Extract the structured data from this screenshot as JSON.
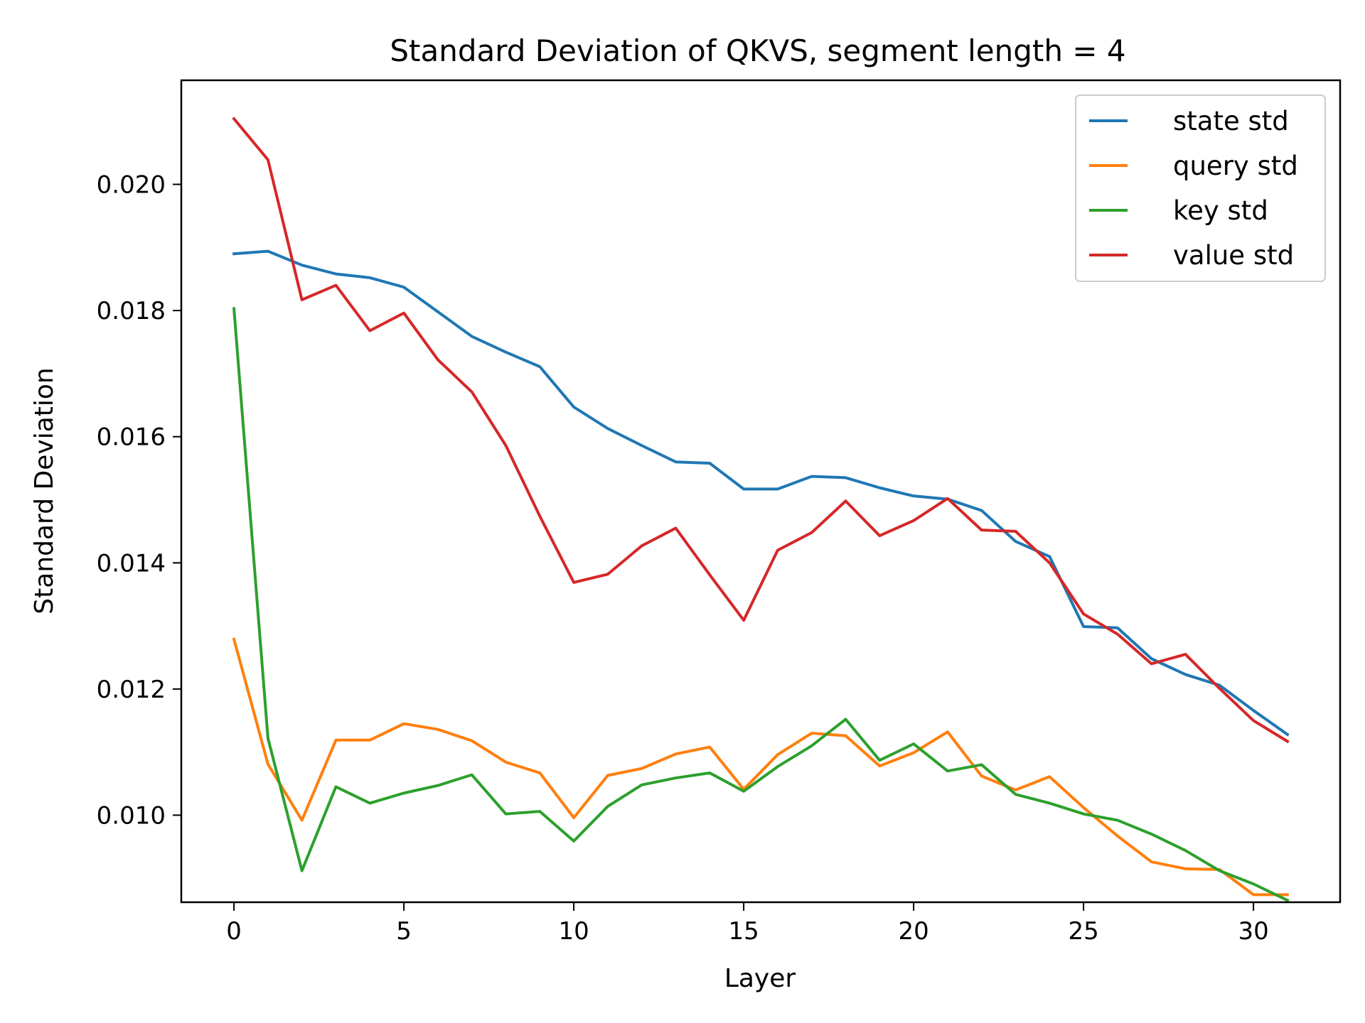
{
  "chart_data": {
    "type": "line",
    "title": "Standard Deviation of QKVS, segment length = 4",
    "xlabel": "Layer",
    "ylabel": "Standard Deviation",
    "xlim": [
      -1.55,
      32.55
    ],
    "ylim": [
      0.00862,
      0.02165
    ],
    "xticks": [
      0,
      5,
      10,
      15,
      20,
      25,
      30
    ],
    "yticks": [
      0.01,
      0.012,
      0.014,
      0.016,
      0.018,
      0.02
    ],
    "ytick_labels": [
      "0.010",
      "0.012",
      "0.014",
      "0.016",
      "0.018",
      "0.020"
    ],
    "grid": false,
    "legend_position": "top-right",
    "x": [
      0,
      1,
      2,
      3,
      4,
      5,
      6,
      7,
      8,
      9,
      10,
      11,
      12,
      13,
      14,
      15,
      16,
      17,
      18,
      19,
      20,
      21,
      22,
      23,
      24,
      25,
      26,
      27,
      28,
      29,
      30,
      31
    ],
    "series": [
      {
        "name": "state std",
        "color": "#1f77b4",
        "values": [
          0.0189,
          0.01894,
          0.01872,
          0.01858,
          0.01852,
          0.01837,
          0.01798,
          0.01759,
          0.01734,
          0.01711,
          0.01647,
          0.01613,
          0.01586,
          0.0156,
          0.01558,
          0.01517,
          0.01517,
          0.01537,
          0.01535,
          0.01519,
          0.01506,
          0.01501,
          0.01483,
          0.01434,
          0.0141,
          0.01299,
          0.01297,
          0.01248,
          0.01223,
          0.01206,
          0.01166,
          0.01128
        ]
      },
      {
        "name": "query std",
        "color": "#ff7f0e",
        "values": [
          0.01279,
          0.01081,
          0.00992,
          0.01119,
          0.01119,
          0.01145,
          0.01136,
          0.01118,
          0.01084,
          0.01067,
          0.00996,
          0.01063,
          0.01074,
          0.01097,
          0.01108,
          0.01041,
          0.01096,
          0.0113,
          0.01126,
          0.01078,
          0.01099,
          0.01132,
          0.01062,
          0.0104,
          0.01061,
          0.01012,
          0.00967,
          0.00926,
          0.00915,
          0.00914,
          0.00874,
          0.00874
        ]
      },
      {
        "name": "key std",
        "color": "#2ca02c",
        "values": [
          0.01803,
          0.01122,
          0.00912,
          0.01045,
          0.01019,
          0.01035,
          0.01047,
          0.01064,
          0.01002,
          0.01006,
          0.00959,
          0.01014,
          0.01048,
          0.01059,
          0.01067,
          0.01038,
          0.01077,
          0.0111,
          0.01152,
          0.01087,
          0.01113,
          0.0107,
          0.0108,
          0.01033,
          0.01019,
          0.01002,
          0.00992,
          0.0097,
          0.00944,
          0.00912,
          0.00891,
          0.00865
        ]
      },
      {
        "name": "value std",
        "color": "#d62728",
        "values": [
          0.02104,
          0.02039,
          0.01817,
          0.0184,
          0.01768,
          0.01796,
          0.01722,
          0.01671,
          0.01586,
          0.01474,
          0.01369,
          0.01382,
          0.01427,
          0.01455,
          0.01381,
          0.01309,
          0.0142,
          0.01448,
          0.01498,
          0.01443,
          0.01467,
          0.01502,
          0.01452,
          0.0145,
          0.014,
          0.01319,
          0.01287,
          0.0124,
          0.01255,
          0.01201,
          0.0115,
          0.01117
        ]
      }
    ]
  }
}
